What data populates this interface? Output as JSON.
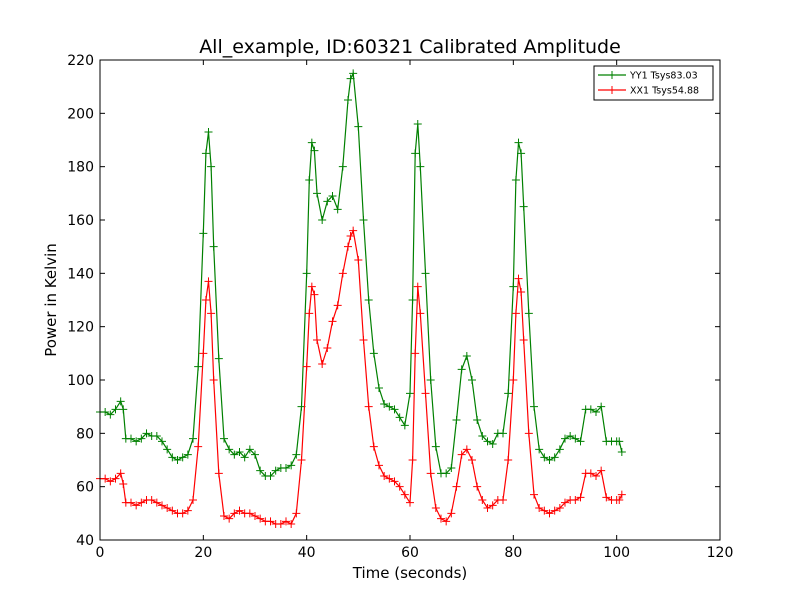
{
  "chart_data": {
    "type": "line",
    "title": "All_example, ID:60321 Calibrated Amplitude",
    "xlabel": "Time (seconds)",
    "ylabel": "Power in Kelvin",
    "xlim": [
      0,
      120
    ],
    "ylim": [
      40,
      220
    ],
    "xticks": [
      0,
      20,
      40,
      60,
      80,
      100,
      120
    ],
    "yticks": [
      40,
      60,
      80,
      100,
      120,
      140,
      160,
      180,
      200,
      220
    ],
    "grid": false,
    "legend_position": "top-right",
    "marker": "+",
    "series": [
      {
        "name": "YY1 Tsys83.03",
        "color": "#008000",
        "x": [
          0,
          1,
          2,
          3,
          4,
          4.5,
          5,
          6,
          7,
          8,
          9,
          10,
          11,
          12,
          13,
          14,
          15,
          16,
          17,
          18,
          19,
          20,
          20.5,
          21,
          21.5,
          22,
          23,
          24,
          25,
          26,
          27,
          28,
          29,
          30,
          31,
          32,
          33,
          34,
          35,
          36,
          37,
          38,
          39,
          40,
          40.5,
          41,
          41.5,
          42,
          43,
          44,
          45,
          46,
          47,
          48,
          48.5,
          49,
          50,
          51,
          52,
          53,
          54,
          55,
          56,
          57,
          58,
          59,
          60,
          60.5,
          61,
          61.5,
          62,
          63,
          64,
          65,
          66,
          67,
          68,
          69,
          70,
          71,
          72,
          73,
          74,
          75,
          76,
          77,
          78,
          79,
          80,
          80.5,
          81,
          81.5,
          82,
          83,
          84,
          85,
          86,
          87,
          88,
          89,
          90,
          91,
          92,
          93,
          94,
          95,
          96,
          97,
          98,
          99,
          100,
          100.5,
          101
        ],
        "y": [
          88,
          88,
          87,
          89,
          92,
          89,
          78,
          78,
          77,
          78,
          80,
          79,
          79,
          77,
          74,
          71,
          70,
          71,
          72,
          78,
          105,
          155,
          185,
          193,
          180,
          150,
          108,
          78,
          74,
          72,
          73,
          71,
          74,
          72,
          66,
          64,
          64,
          66,
          67,
          67,
          68,
          72,
          90,
          140,
          175,
          189,
          186,
          170,
          160,
          167,
          169,
          164,
          180,
          205,
          213,
          215,
          195,
          160,
          130,
          110,
          97,
          91,
          90,
          89,
          86,
          83,
          95,
          130,
          185,
          196,
          180,
          140,
          100,
          75,
          65,
          65,
          67,
          85,
          104,
          109,
          100,
          85,
          79,
          77,
          76,
          80,
          80,
          95,
          135,
          175,
          189,
          185,
          165,
          125,
          90,
          74,
          71,
          70,
          71,
          74,
          78,
          79,
          78,
          77,
          89,
          89,
          88,
          90,
          77,
          77,
          77,
          77,
          73
        ]
      },
      {
        "name": "XX1 Tsys54.88",
        "color": "#ff0000",
        "x": [
          0,
          1,
          2,
          3,
          4,
          4.5,
          5,
          6,
          7,
          8,
          9,
          10,
          11,
          12,
          13,
          14,
          15,
          16,
          17,
          18,
          19,
          20,
          20.5,
          21,
          21.5,
          22,
          23,
          24,
          25,
          26,
          27,
          28,
          29,
          30,
          31,
          32,
          33,
          34,
          35,
          36,
          37,
          38,
          39,
          40,
          40.5,
          41,
          41.5,
          42,
          43,
          44,
          45,
          46,
          47,
          48,
          48.5,
          49,
          50,
          51,
          52,
          53,
          54,
          55,
          56,
          57,
          58,
          59,
          60,
          60.5,
          61,
          61.5,
          62,
          63,
          64,
          65,
          66,
          67,
          68,
          69,
          70,
          71,
          72,
          73,
          74,
          75,
          76,
          77,
          78,
          79,
          80,
          80.5,
          81,
          81.5,
          82,
          83,
          84,
          85,
          86,
          87,
          88,
          89,
          90,
          91,
          92,
          93,
          94,
          95,
          96,
          97,
          98,
          99,
          100,
          100.5,
          101
        ],
        "y": [
          63,
          63,
          62,
          63,
          65,
          61,
          54,
          54,
          53,
          54,
          55,
          55,
          54,
          53,
          52,
          51,
          50,
          50,
          51,
          55,
          75,
          110,
          130,
          137,
          125,
          100,
          65,
          49,
          48,
          50,
          51,
          50,
          50,
          49,
          48,
          47,
          47,
          46,
          46,
          47,
          46,
          50,
          70,
          105,
          125,
          135,
          132,
          115,
          106,
          112,
          122,
          128,
          140,
          150,
          154,
          156,
          145,
          115,
          90,
          75,
          68,
          64,
          63,
          62,
          60,
          57,
          54,
          70,
          110,
          135,
          125,
          95,
          65,
          52,
          48,
          47,
          50,
          60,
          72,
          74,
          70,
          60,
          55,
          52,
          53,
          55,
          55,
          70,
          100,
          125,
          138,
          133,
          115,
          80,
          57,
          52,
          51,
          50,
          51,
          52,
          54,
          55,
          55,
          56,
          65,
          65,
          64,
          66,
          56,
          55,
          55,
          55,
          57
        ]
      }
    ]
  }
}
